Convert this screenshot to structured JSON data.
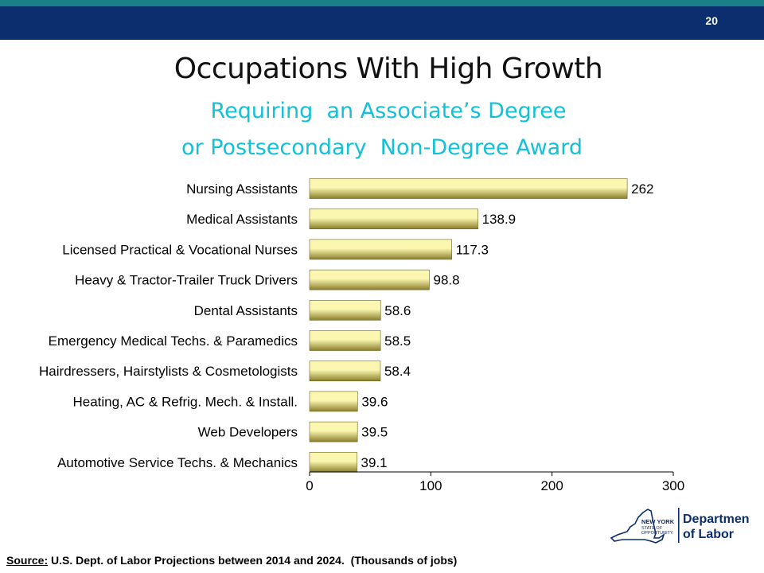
{
  "slide_number": "20",
  "title": "Occupations With High Growth",
  "subtitle_line1": "Requiring  an Associate’s Degree",
  "subtitle_line2": "or Postsecondary  Non-Degree Award",
  "chart_data": {
    "type": "bar",
    "orientation": "horizontal",
    "categories": [
      "Nursing Assistants",
      "Medical Assistants",
      "Licensed Practical & Vocational Nurses",
      "Heavy & Tractor-Trailer Truck Drivers",
      "Dental Assistants",
      "Emergency Medical Techs. & Paramedics",
      "Hairdressers, Hairstylists & Cosmetologists",
      "Heating, AC & Refrig. Mech. & Install.",
      "Web Developers",
      "Automotive Service Techs. & Mechanics"
    ],
    "values": [
      262,
      138.9,
      117.3,
      98.8,
      58.6,
      58.5,
      58.4,
      39.6,
      39.5,
      39.1
    ],
    "value_labels": [
      "262",
      "138.9",
      "117.3",
      "98.8",
      "58.6",
      "58.5",
      "58.4",
      "39.6",
      "39.5",
      "39.1"
    ],
    "xlim": [
      0,
      300
    ],
    "xticks": [
      0,
      100,
      200,
      300
    ],
    "grid": false,
    "bar_color_light": "#fbf7b0",
    "bar_color_dark": "#8a7e2a"
  },
  "source": {
    "label": "Source:",
    "text": " U.S. Dept. of Labor Projections between 2014 and 2024.  (Thousands of jobs)"
  },
  "logo": {
    "state_line1": "NEW YORK",
    "state_line2": "STATE OF",
    "state_line3": "OPPORTUNITY.",
    "dept_line1": "Department",
    "dept_line2": "of Labor",
    "color": "#0b2e6e",
    "icon": "new-york-state-outline-icon"
  }
}
